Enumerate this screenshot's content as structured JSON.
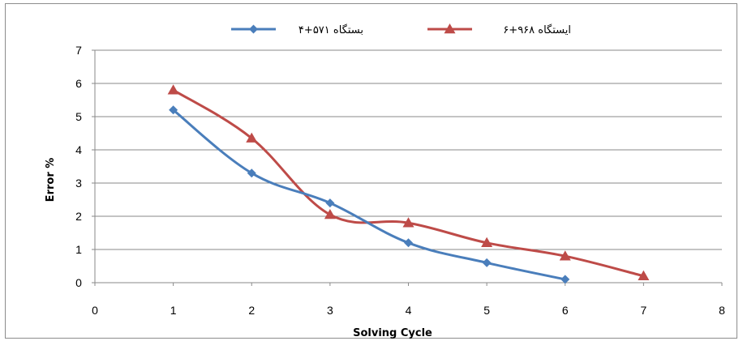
{
  "chart_data": {
    "type": "line",
    "xlabel": "Solving Cycle",
    "ylabel": "Error %",
    "xlim": [
      0,
      8
    ],
    "ylim": [
      0,
      7
    ],
    "xticks": [
      "0",
      "1",
      "2",
      "3",
      "4",
      "5",
      "6",
      "7",
      "8"
    ],
    "yticks": [
      "0",
      "1",
      "2",
      "3",
      "4",
      "5",
      "6",
      "7"
    ],
    "grid": "horizontal",
    "legend_position": "top",
    "series": [
      {
        "name": "بستگاه ۵۷۱+۴",
        "color": "#4a7ebb",
        "marker": "diamond",
        "x": [
          1,
          2,
          3,
          4,
          5,
          6
        ],
        "y": [
          5.2,
          3.3,
          2.4,
          1.2,
          0.6,
          0.1
        ]
      },
      {
        "name": "ایستگاه ۹۶۸+۶",
        "color": "#be4b48",
        "marker": "triangle",
        "x": [
          1,
          2,
          3,
          4,
          5,
          6,
          7
        ],
        "y": [
          5.8,
          4.35,
          2.05,
          1.8,
          1.2,
          0.8,
          0.2
        ]
      }
    ]
  }
}
